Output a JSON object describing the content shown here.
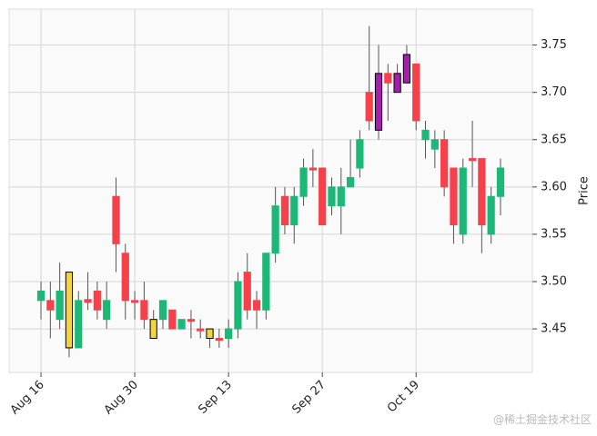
{
  "chart_data": {
    "type": "candlestick",
    "ylabel": "Price",
    "watermark": "@稀土掘金技术社区",
    "x": [
      0,
      1,
      2,
      3,
      4,
      5,
      6,
      7,
      8,
      9,
      10,
      11,
      12,
      13,
      14,
      15,
      16,
      17,
      18,
      19,
      20,
      21,
      22,
      23,
      24,
      25,
      26,
      27,
      28,
      29,
      30,
      31,
      32,
      33,
      34,
      35,
      36,
      37,
      38,
      39,
      40,
      41,
      42,
      43,
      44,
      45,
      46,
      47,
      48,
      49
    ],
    "open": [
      3.48,
      3.48,
      3.46,
      3.51,
      3.43,
      3.481,
      3.49,
      3.46,
      3.59,
      3.53,
      3.48,
      3.48,
      3.46,
      3.46,
      3.47,
      3.45,
      3.46,
      3.45,
      3.45,
      3.44,
      3.44,
      3.45,
      3.51,
      3.48,
      3.47,
      3.53,
      3.59,
      3.56,
      3.59,
      3.62,
      3.62,
      3.58,
      3.58,
      3.6,
      3.62,
      3.7,
      3.66,
      3.72,
      3.72,
      3.71,
      3.73,
      3.65,
      3.64,
      3.65,
      3.62,
      3.55,
      3.63,
      3.63,
      3.55,
      3.59
    ],
    "high": [
      3.5,
      3.5,
      3.52,
      3.51,
      3.49,
      3.51,
      3.5,
      3.5,
      3.61,
      3.54,
      3.49,
      3.5,
      3.47,
      3.48,
      3.47,
      3.46,
      3.47,
      3.46,
      3.45,
      3.45,
      3.46,
      3.51,
      3.53,
      3.49,
      3.53,
      3.6,
      3.6,
      3.6,
      3.63,
      3.64,
      3.62,
      3.61,
      3.62,
      3.65,
      3.66,
      3.77,
      3.75,
      3.73,
      3.73,
      3.75,
      3.73,
      3.67,
      3.66,
      3.66,
      3.62,
      3.63,
      3.67,
      3.63,
      3.6,
      3.63
    ],
    "low": [
      3.46,
      3.44,
      3.45,
      3.42,
      3.43,
      3.47,
      3.46,
      3.45,
      3.51,
      3.46,
      3.46,
      3.45,
      3.44,
      3.45,
      3.45,
      3.45,
      3.44,
      3.44,
      3.43,
      3.43,
      3.43,
      3.44,
      3.46,
      3.45,
      3.46,
      3.52,
      3.55,
      3.54,
      3.58,
      3.6,
      3.56,
      3.57,
      3.55,
      3.6,
      3.61,
      3.66,
      3.65,
      3.67,
      3.7,
      3.71,
      3.66,
      3.63,
      3.62,
      3.59,
      3.54,
      3.54,
      3.6,
      3.53,
      3.54,
      3.57
    ],
    "close": [
      3.49,
      3.47,
      3.49,
      3.43,
      3.48,
      3.478,
      3.47,
      3.48,
      3.54,
      3.48,
      3.478,
      3.46,
      3.44,
      3.48,
      3.45,
      3.46,
      3.458,
      3.448,
      3.44,
      3.438,
      3.45,
      3.5,
      3.47,
      3.47,
      3.53,
      3.58,
      3.56,
      3.59,
      3.62,
      3.618,
      3.56,
      3.6,
      3.6,
      3.61,
      3.65,
      3.67,
      3.72,
      3.71,
      3.7,
      3.74,
      3.67,
      3.66,
      3.65,
      3.6,
      3.56,
      3.62,
      3.628,
      3.56,
      3.59,
      3.62
    ],
    "colors": [
      "#1bb877",
      "#f6404a",
      "#1bb877",
      "#f5d33c",
      "#1bb877",
      "#f6404a",
      "#f6404a",
      "#1bb877",
      "#f6404a",
      "#f6404a",
      "#f6404a",
      "#f6404a",
      "#f5d33c",
      "#1bb877",
      "#f6404a",
      "#1bb877",
      "#f6404a",
      "#f6404a",
      "#f5d33c",
      "#f6404a",
      "#1bb877",
      "#1bb877",
      "#f6404a",
      "#f6404a",
      "#1bb877",
      "#1bb877",
      "#f6404a",
      "#1bb877",
      "#1bb877",
      "#f6404a",
      "#f6404a",
      "#1bb877",
      "#1bb877",
      "#1bb877",
      "#1bb877",
      "#f6404a",
      "#a51fae",
      "#f6404a",
      "#a51fae",
      "#a51fae",
      "#f6404a",
      "#1bb877",
      "#1bb877",
      "#f6404a",
      "#f6404a",
      "#1bb877",
      "#f6404a",
      "#f6404a",
      "#1bb877",
      "#1bb877"
    ],
    "xlim": [
      -3.4,
      52.4
    ],
    "xticks": [
      {
        "value": 0,
        "label": "Aug 16"
      },
      {
        "value": 10,
        "label": "Aug 30"
      },
      {
        "value": 20,
        "label": "Sep 13"
      },
      {
        "value": 30,
        "label": "Sep 27"
      },
      {
        "value": 40,
        "label": "Oct 19"
      }
    ],
    "ylim": [
      3.404,
      3.788
    ],
    "yticks": [
      {
        "value": 3.45,
        "label": "3.45"
      },
      {
        "value": 3.5,
        "label": "3.50"
      },
      {
        "value": 3.55,
        "label": "3.55"
      },
      {
        "value": 3.6,
        "label": "3.60"
      },
      {
        "value": 3.65,
        "label": "3.65"
      },
      {
        "value": 3.7,
        "label": "3.70"
      },
      {
        "value": 3.75,
        "label": "3.75"
      }
    ],
    "grid": true
  }
}
